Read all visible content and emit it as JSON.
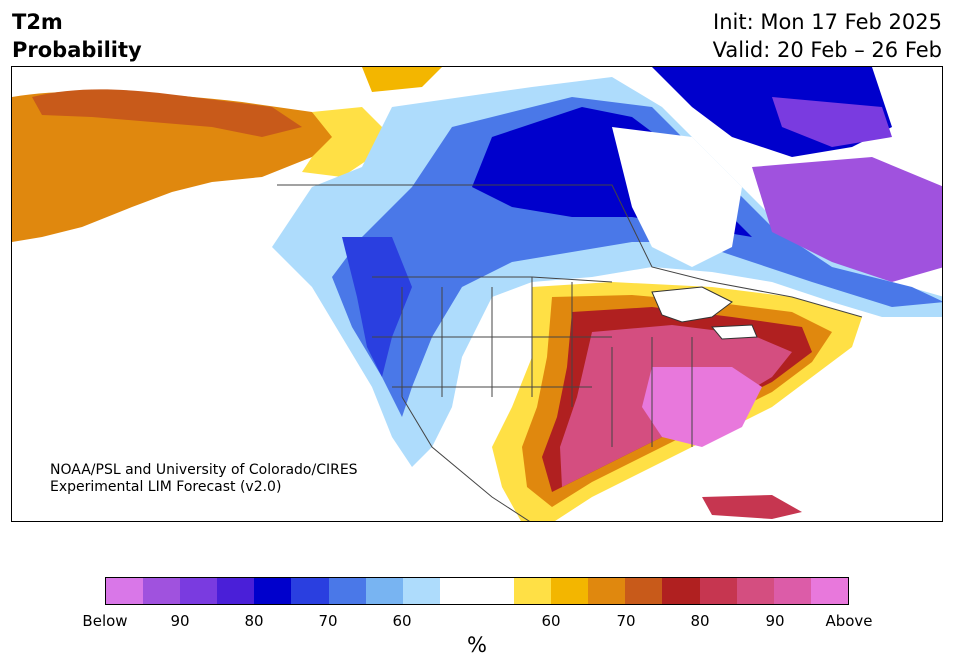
{
  "header": {
    "variable": "T2m",
    "product": "Probability",
    "init": "Init: Mon 17 Feb 2025",
    "valid": "Valid: 20 Feb – 26 Feb"
  },
  "map": {
    "credit_line1": "NOAA/PSL and University of Colorado/CIRES",
    "credit_line2": "Experimental LIM Forecast (v2.0)"
  },
  "colorbar": {
    "unit": "%",
    "colors": [
      "#d977e8",
      "#a052de",
      "#7a3be0",
      "#4a1fd8",
      "#0000cc",
      "#2a3fe0",
      "#4a78e8",
      "#78b4f2",
      "#aedcfc",
      "#ffffff",
      "#ffffff",
      "#ffe045",
      "#f3b600",
      "#e0880e",
      "#c85a1a",
      "#b02020",
      "#c63650",
      "#d44e80",
      "#dc5ca8",
      "#e878dc"
    ],
    "tick_labels": [
      "Below",
      "90",
      "80",
      "70",
      "60",
      "60",
      "70",
      "80",
      "90",
      "Above"
    ]
  },
  "colors": {
    "below_strong": "#0000cc",
    "below_mid": "#4a78e8",
    "below_weak": "#aedcfc",
    "above_weak": "#ffe045",
    "above_mid": "#e0880e",
    "above_strong": "#b02020",
    "above_extreme": "#d44e80"
  }
}
